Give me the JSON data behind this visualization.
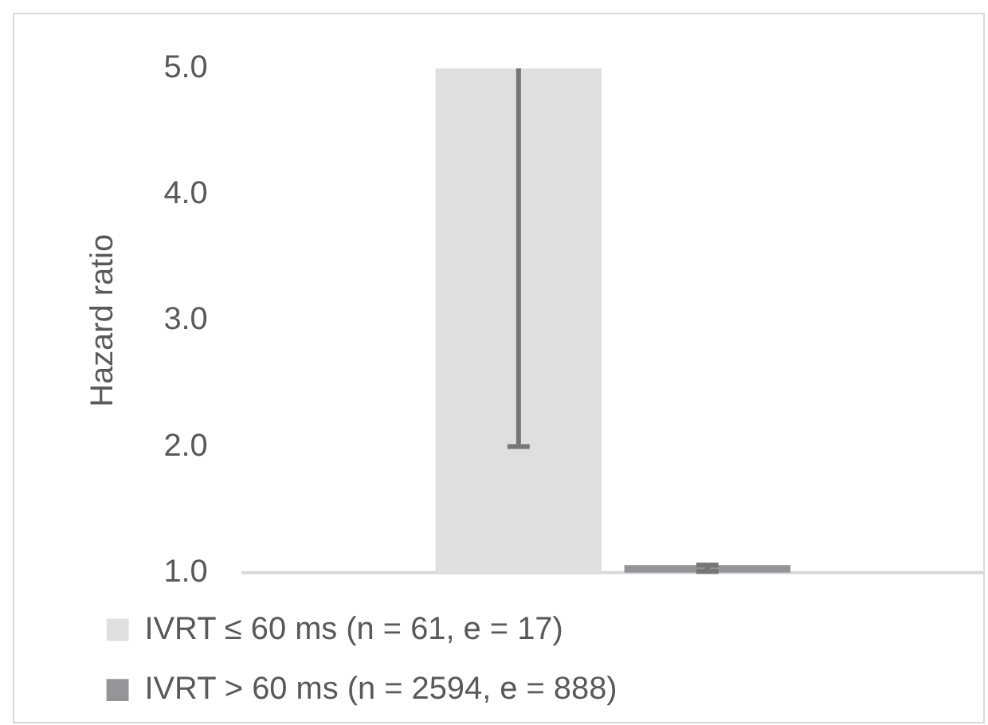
{
  "chart_data": {
    "type": "bar",
    "ylabel": "Hazard ratio",
    "categories": [
      null
    ],
    "series": [
      {
        "name": "IVRT ≤ 60 ms (n = 61, e = 17)",
        "color": "#dedfe1",
        "values": [
          5.0
        ],
        "errors": [
          [
            2.0,
            5.0
          ]
        ]
      },
      {
        "name": "IVRT > 60 ms (n = 2594, e = 888)",
        "color": "#949598",
        "values": [
          1.06
        ],
        "errors": [
          [
            1.01,
            1.06
          ]
        ]
      }
    ],
    "ylim": [
      1.0,
      5.0
    ],
    "yticks": [
      {
        "value": 1,
        "label": "1.0"
      },
      {
        "value": 2,
        "label": "2.0"
      },
      {
        "value": 3,
        "label": "3.0"
      },
      {
        "value": 4,
        "label": "4.0"
      },
      {
        "value": 5,
        "label": "5.0"
      }
    ],
    "legend": "bottom"
  }
}
